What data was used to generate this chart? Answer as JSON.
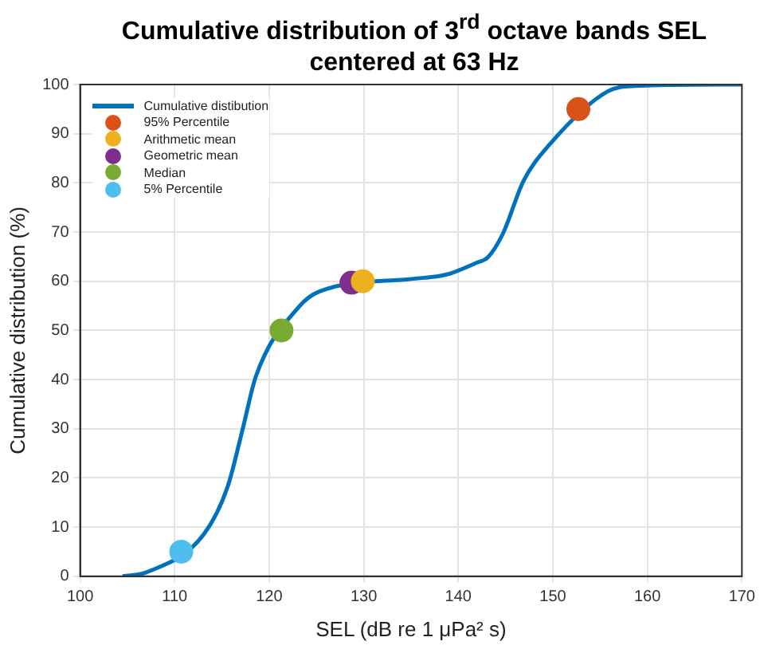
{
  "chart_data": {
    "type": "line",
    "title": "Cumulative distribution of 3$^{rd}$ octave bands SEL centered at 63 Hz",
    "xlabel": "SEL (dB re 1 μPa² s)",
    "ylabel": "Cumulative distribution (%)",
    "xlim": [
      100,
      170
    ],
    "xticks": [
      100,
      110,
      120,
      130,
      140,
      150,
      160,
      170
    ],
    "ylim": [
      0,
      100
    ],
    "yticks": [
      0,
      10,
      20,
      30,
      40,
      50,
      60,
      70,
      80,
      90,
      100
    ],
    "grid": true,
    "legend": "top left",
    "line_style": "solid",
    "series": [
      {
        "name": "Cumulative distibution",
        "color": "#0072bd",
        "x": [
          104.5,
          107,
          113.1,
          115.6,
          117.2,
          118.6,
          123.1,
          125.3,
          135.3,
          138.1,
          139.2,
          142,
          143.1,
          144.7,
          146.9,
          149.7,
          155.8,
          158.6,
          170
        ],
        "values": [
          0,
          0.8,
          8.6,
          18.2,
          30,
          40.7,
          54.7,
          57.9,
          60.5,
          61.1,
          61.6,
          63.8,
          64.8,
          69.6,
          80.4,
          87.9,
          98.6,
          99.7,
          100
        ]
      },
      {
        "name": "95% Percentile",
        "type": "scatter",
        "marker": "circle",
        "color": "#d95319",
        "x": [
          152.7
        ],
        "values": [
          95
        ]
      },
      {
        "name": "Arithmetic mean",
        "type": "scatter",
        "marker": "circle",
        "color": "#edb120",
        "x": [
          129.9
        ],
        "values": [
          60
        ]
      },
      {
        "name": "Geometric mean",
        "type": "scatter",
        "marker": "circle",
        "color": "#7e2f8e",
        "x": [
          128.7
        ],
        "values": [
          59.7
        ]
      },
      {
        "name": "Median",
        "type": "scatter",
        "marker": "circle",
        "color": "#77ac30",
        "x": [
          121.3
        ],
        "values": [
          50
        ]
      },
      {
        "name": "5% Percentile",
        "type": "scatter",
        "marker": "circle",
        "color": "#4dbeee",
        "x": [
          110.7
        ],
        "values": [
          5
        ]
      }
    ]
  }
}
